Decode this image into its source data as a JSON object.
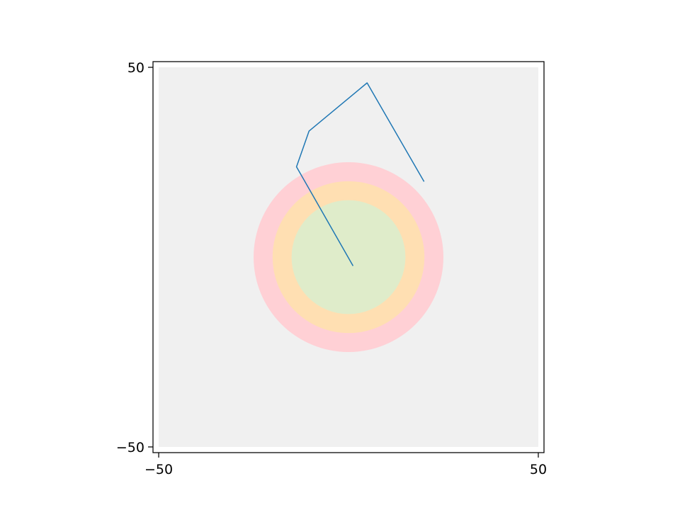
{
  "chart_data": {
    "type": "line",
    "title": "",
    "xlabel": "",
    "ylabel": "",
    "xlim": [
      -51.5,
      51.5
    ],
    "ylim": [
      -51.5,
      51.5
    ],
    "grid": false,
    "x_ticks": [
      {
        "value": -50,
        "label": "−50"
      },
      {
        "value": 50,
        "label": "50"
      }
    ],
    "y_ticks": [
      {
        "value": 50,
        "label": "50"
      },
      {
        "value": -50,
        "label": "−50"
      }
    ],
    "background_square": {
      "x": [
        -50,
        50
      ],
      "y": [
        -50,
        50
      ],
      "color": "#f0f0f0"
    },
    "circles": [
      {
        "center": [
          0,
          0
        ],
        "radius": 25,
        "color": "#ffd0d5"
      },
      {
        "center": [
          0,
          0
        ],
        "radius": 20,
        "color": "#ffdfb2"
      },
      {
        "center": [
          0,
          0
        ],
        "radius": 15,
        "color": "#dfecca"
      }
    ],
    "series": [
      {
        "color": "#1f77b4",
        "points": [
          {
            "x": 1.2,
            "y": -2.3
          },
          {
            "x": -13.7,
            "y": 23.8
          },
          {
            "x": -10.4,
            "y": 33.2
          },
          {
            "x": 4.9,
            "y": 45.9
          },
          {
            "x": 19.9,
            "y": 19.9
          }
        ]
      }
    ]
  }
}
